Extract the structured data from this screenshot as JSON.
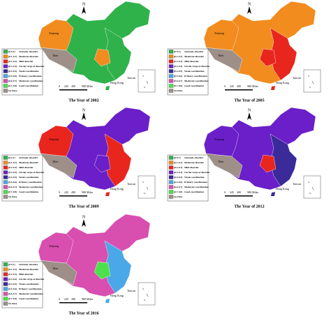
{
  "legend": [
    {
      "range": "[0-0.1)",
      "label": "Seriously disorder",
      "color": "#2fb24a"
    },
    {
      "range": "[0.1-0.2)",
      "label": "Moderate disorder",
      "color": "#f28c1e"
    },
    {
      "range": "[0.2-0.3)",
      "label": "Mild disorder",
      "color": "#e8261e"
    },
    {
      "range": "[0.3-0.4)",
      "label": "On the verge of disorder",
      "color": "#6a1fc8"
    },
    {
      "range": "[0.4-0.5)",
      "label": "Weak coordination",
      "color": "#3a2a9a"
    },
    {
      "range": "[0.5-0.6)",
      "label": "Primary coordination",
      "color": "#4aa8e8"
    },
    {
      "range": "[0.6-0.7)",
      "label": "Moderate coordination",
      "color": "#d84fb0"
    },
    {
      "range": "[0.7-0.8)",
      "label": "Good coordination",
      "color": "#4de04a"
    },
    {
      "range": "",
      "label": "No Data",
      "color": "#9e9088"
    }
  ],
  "scale": [
    "0",
    "245",
    "490",
    "980 Miles"
  ],
  "north": "N",
  "places": {
    "xinjiang": "Xinjiang",
    "tibet": "Tibet",
    "taiwan": "Taiwan",
    "hongkong": "Hong Kong"
  },
  "maps": [
    {
      "title": "The Year of 2002",
      "colors": {
        "base": "#2fb24a",
        "west": "#f28c1e",
        "east": "#2fb24a",
        "spot": "#f28c1e"
      }
    },
    {
      "title": "The Year of 2005",
      "colors": {
        "base": "#f28c1e",
        "west": "#f28c1e",
        "east": "#e8261e",
        "spot": "#e8261e"
      }
    },
    {
      "title": "The Year of 2009",
      "colors": {
        "base": "#6a1fc8",
        "west": "#e8261e",
        "east": "#e8261e",
        "spot": "#6a1fc8"
      }
    },
    {
      "title": "The Year of 2012",
      "colors": {
        "base": "#6a1fc8",
        "west": "#6a1fc8",
        "east": "#3a2a9a",
        "spot": "#e8261e"
      }
    },
    {
      "title": "The Year of 2016",
      "colors": {
        "base": "#d84fb0",
        "west": "#d84fb0",
        "east": "#4aa8e8",
        "spot": "#4de04a"
      }
    }
  ]
}
